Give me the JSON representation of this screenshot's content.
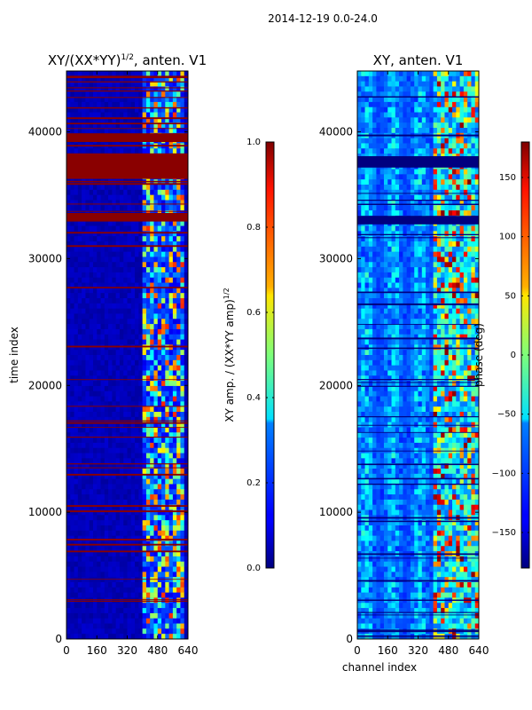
{
  "figure": {
    "suptitle": "2014-12-19 0.0-24.0"
  },
  "chart_data": [
    {
      "type": "heatmap",
      "title": "XY/(XX*YY)",
      "title_exponent": "1/2",
      "title_suffix": ", anten. V1",
      "xlabel": "",
      "ylabel": "time index",
      "xlim": [
        0,
        640
      ],
      "ylim": [
        0,
        44800
      ],
      "xticks": [
        "0",
        "160",
        "320",
        "480",
        "640"
      ],
      "yticks": [
        "0",
        "10000",
        "20000",
        "30000",
        "40000"
      ],
      "xtick_values": [
        0,
        160,
        320,
        480,
        640
      ],
      "ytick_values": [
        0,
        10000,
        20000,
        30000,
        40000
      ],
      "colorscale": "jet",
      "colorbar": {
        "label": "XY amp. / (XX*YY amp)",
        "label_exponent": "1/2",
        "range": [
          0.0,
          1.0
        ],
        "ticks": [
          "0.0",
          "0.2",
          "0.4",
          "0.6",
          "0.8",
          "1.0"
        ],
        "tick_values": [
          0.0,
          0.2,
          0.4,
          0.6,
          0.8,
          1.0
        ]
      }
    },
    {
      "type": "heatmap",
      "title": "XY, anten. V1",
      "xlabel": "channel index",
      "ylabel": "",
      "xlim": [
        0,
        640
      ],
      "ylim": [
        0,
        44800
      ],
      "xticks": [
        "0",
        "160",
        "320",
        "480",
        "640"
      ],
      "yticks": [
        "0",
        "10000",
        "20000",
        "30000",
        "40000"
      ],
      "xtick_values": [
        0,
        160,
        320,
        480,
        640
      ],
      "ytick_values": [
        0,
        10000,
        20000,
        30000,
        40000
      ],
      "colorscale": "jet",
      "colorbar": {
        "label": "phase (deg)",
        "range": [
          -180,
          180
        ],
        "ticks": [
          "−150",
          "−100",
          "−50",
          "0",
          "50",
          "100",
          "150"
        ],
        "tick_values": [
          -150,
          -100,
          -50,
          0,
          50,
          100,
          150
        ]
      }
    }
  ]
}
